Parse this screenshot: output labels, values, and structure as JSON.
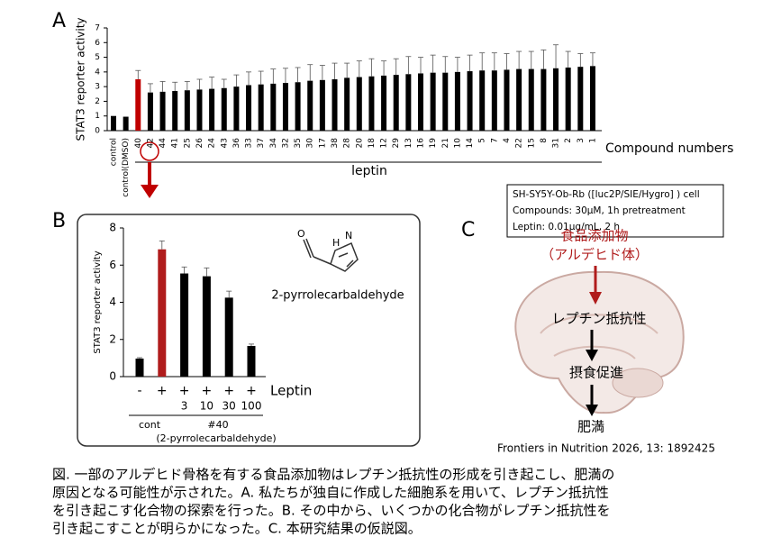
{
  "chart_data": [
    {
      "type": "bar",
      "y_label": "STAT3 reporter activity",
      "x_label": "Compound numbers",
      "group_label": "leptin",
      "note": [
        "SH-SY5Y-Ob-Rb ([luc2P/SIE/Hygro] ) cell",
        "Compounds: 30μM, 1h pretreatment",
        "Leptin: 0.01μg/mL, 2 h"
      ],
      "categories": [
        "control",
        "control(DMSO)",
        "40",
        "42",
        "44",
        "41",
        "25",
        "26",
        "24",
        "43",
        "36",
        "33",
        "37",
        "34",
        "32",
        "35",
        "30",
        "17",
        "38",
        "28",
        "20",
        "18",
        "12",
        "29",
        "13",
        "16",
        "19",
        "21",
        "10",
        "14",
        "5",
        "7",
        "4",
        "22",
        "15",
        "8",
        "31",
        "2",
        "3",
        "1"
      ],
      "values": [
        1.0,
        0.95,
        3.5,
        2.6,
        2.65,
        2.7,
        2.75,
        2.8,
        2.85,
        2.9,
        3.0,
        3.1,
        3.15,
        3.2,
        3.25,
        3.3,
        3.4,
        3.45,
        3.5,
        3.6,
        3.65,
        3.7,
        3.75,
        3.8,
        3.85,
        3.9,
        3.95,
        3.95,
        4.0,
        4.05,
        4.1,
        4.1,
        4.15,
        4.2,
        4.2,
        4.2,
        4.25,
        4.3,
        4.35,
        4.4
      ],
      "errors": [
        0.0,
        0.0,
        0.6,
        0.6,
        0.7,
        0.6,
        0.6,
        0.7,
        0.8,
        0.6,
        0.8,
        0.9,
        0.9,
        1.0,
        1.0,
        1.0,
        1.1,
        1.0,
        1.1,
        1.0,
        1.1,
        1.2,
        1.0,
        1.1,
        1.2,
        1.1,
        1.2,
        1.1,
        1.0,
        1.1,
        1.2,
        1.2,
        1.1,
        1.2,
        1.2,
        1.3,
        1.6,
        1.1,
        0.9,
        0.9
      ],
      "colors": [
        "#000000",
        "#000000",
        "#c00000",
        "#000000",
        "#000000",
        "#000000",
        "#000000",
        "#000000",
        "#000000",
        "#000000",
        "#000000",
        "#000000",
        "#000000",
        "#000000",
        "#000000",
        "#000000",
        "#000000",
        "#000000",
        "#000000",
        "#000000",
        "#000000",
        "#000000",
        "#000000",
        "#000000",
        "#000000",
        "#000000",
        "#000000",
        "#000000",
        "#000000",
        "#000000",
        "#000000",
        "#000000",
        "#000000",
        "#000000",
        "#000000",
        "#000000",
        "#000000",
        "#000000",
        "#000000",
        "#000000"
      ],
      "ylim": [
        0,
        7
      ],
      "yticks": [
        0,
        1,
        2,
        3,
        4,
        5,
        6,
        7
      ]
    },
    {
      "type": "bar",
      "y_label": "STAT3 reporter activity",
      "row_label": "Leptin",
      "categories": [
        "-",
        "+",
        "+",
        "+",
        "+",
        "+"
      ],
      "doses": [
        null,
        null,
        "3",
        "10",
        "30",
        "100"
      ],
      "group_labels": [
        "cont",
        "#40",
        "(2-pyrrolecarbaldehyde)"
      ],
      "annotation": "2-pyrrolecarbaldehyde",
      "values": [
        0.97,
        6.85,
        5.55,
        5.4,
        4.25,
        1.65
      ],
      "errors": [
        0.05,
        0.45,
        0.35,
        0.45,
        0.35,
        0.1
      ],
      "colors": [
        "#000000",
        "#b01c1c",
        "#000000",
        "#000000",
        "#000000",
        "#000000"
      ],
      "ylim": [
        0,
        8
      ],
      "yticks": [
        0,
        2,
        4,
        6,
        8
      ]
    }
  ],
  "panel_labels": [
    "A",
    "B",
    "C"
  ],
  "diagram": {
    "input": [
      "食品添加物",
      "（アルデヒド体）"
    ],
    "steps": [
      "レプチン抵抗性",
      "摂食促進",
      "肥満"
    ]
  },
  "citation": "Frontiers in Nutrition 2026, 13: 1892425",
  "caption": [
    "図. 一部のアルデヒド骨格を有する食品添加物はレプチン抵抗性の形成を引き起こし、肥満の",
    "原因となる可能性が示された。A. 私たちが独自に作成した細胞系を用いて、レプチン抵抗性",
    "を引き起こす化合物の探索を行った。B. その中から、いくつかの化合物がレプチン抵抗性を",
    "引き起こすことが明らかになった。C. 本研究結果の仮説図。"
  ]
}
